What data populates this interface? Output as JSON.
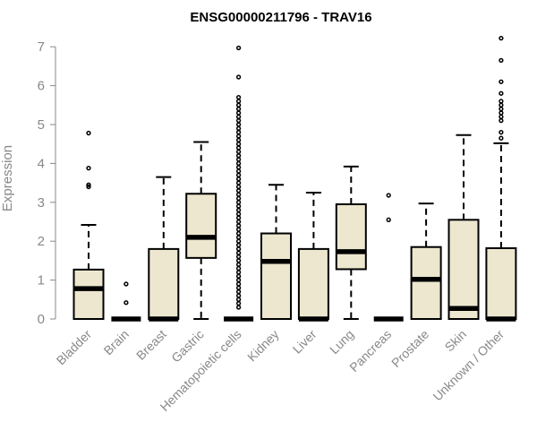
{
  "chart_data": {
    "type": "boxplot",
    "title": "ENSG00000211796 - TRAV16",
    "xlabel": "",
    "ylabel": "Expression",
    "ylim": [
      0,
      7.2
    ],
    "yticks": [
      0,
      1,
      2,
      3,
      4,
      5,
      6,
      7
    ],
    "grid": false,
    "legend": "none",
    "box_color": "#ede7cf",
    "line_color": "#000000",
    "axis_color": "#888888",
    "categories": [
      "Bladder",
      "Brain",
      "Breast",
      "Gastric",
      "Hematopoietic cells",
      "Kidney",
      "Liver",
      "Lung",
      "Pancreas",
      "Prostate",
      "Skin",
      "Unknown / Other"
    ],
    "boxes": [
      {
        "whisker_low": 0,
        "q1": 0,
        "median": 0.78,
        "q3": 1.27,
        "whisker_high": 2.42,
        "outliers": [
          3.4,
          3.45,
          3.88,
          4.78
        ]
      },
      {
        "whisker_low": 0,
        "q1": 0,
        "median": 0,
        "q3": 0,
        "whisker_high": 0,
        "outliers": [
          0.42,
          0.9
        ]
      },
      {
        "whisker_low": 0,
        "q1": 0,
        "median": 0,
        "q3": 1.8,
        "whisker_high": 3.65,
        "outliers": []
      },
      {
        "whisker_low": 0,
        "q1": 1.57,
        "median": 2.1,
        "q3": 3.22,
        "whisker_high": 4.55,
        "outliers": []
      },
      {
        "whisker_low": 0,
        "q1": 0,
        "median": 0,
        "q3": 0,
        "whisker_high": 0,
        "outliers": [
          0.3,
          0.4,
          0.5,
          0.6,
          0.7,
          0.8,
          0.9,
          1.0,
          1.1,
          1.2,
          1.3,
          1.4,
          1.5,
          1.6,
          1.7,
          1.8,
          1.9,
          2.0,
          2.1,
          2.2,
          2.3,
          2.4,
          2.5,
          2.6,
          2.7,
          2.8,
          2.9,
          3.0,
          3.1,
          3.2,
          3.3,
          3.4,
          3.5,
          3.6,
          3.7,
          3.8,
          3.9,
          4.0,
          4.1,
          4.2,
          4.3,
          4.4,
          4.5,
          4.6,
          4.7,
          4.8,
          4.9,
          5.0,
          5.1,
          5.2,
          5.3,
          5.4,
          5.5,
          5.6,
          5.7,
          6.22,
          6.97
        ]
      },
      {
        "whisker_low": 0,
        "q1": 0,
        "median": 1.48,
        "q3": 2.2,
        "whisker_high": 3.45,
        "outliers": []
      },
      {
        "whisker_low": 0,
        "q1": 0,
        "median": 0,
        "q3": 1.8,
        "whisker_high": 3.25,
        "outliers": []
      },
      {
        "whisker_low": 0,
        "q1": 1.28,
        "median": 1.73,
        "q3": 2.95,
        "whisker_high": 3.92,
        "outliers": []
      },
      {
        "whisker_low": 0,
        "q1": 0,
        "median": 0,
        "q3": 0,
        "whisker_high": 0,
        "outliers": [
          2.55,
          3.18
        ]
      },
      {
        "whisker_low": 0,
        "q1": 0,
        "median": 1.02,
        "q3": 1.85,
        "whisker_high": 2.97,
        "outliers": []
      },
      {
        "whisker_low": 0,
        "q1": 0,
        "median": 0.27,
        "q3": 2.55,
        "whisker_high": 4.73,
        "outliers": []
      },
      {
        "whisker_low": 0,
        "q1": 0,
        "median": 0,
        "q3": 1.82,
        "whisker_high": 4.52,
        "outliers": [
          4.65,
          4.8,
          5.1,
          5.2,
          5.3,
          5.4,
          5.5,
          5.6,
          5.8,
          6.1,
          6.65,
          7.22
        ]
      }
    ]
  }
}
